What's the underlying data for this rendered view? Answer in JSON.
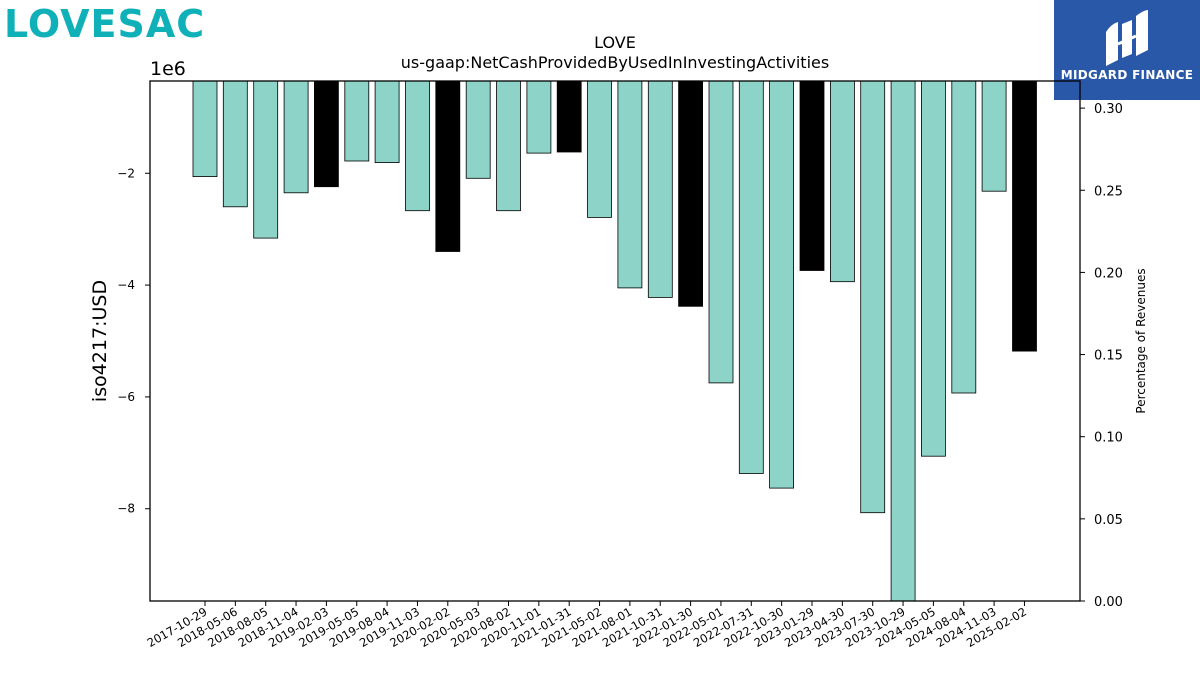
{
  "branding": {
    "company_logo_text": "LOVESAC",
    "company_logo_color": "#0fb0b8",
    "publisher_logo_text": "MIDGARD FINANCE",
    "publisher_logo_bg": "#2a58a8"
  },
  "chart_data": {
    "type": "bar",
    "title": "LOVE",
    "subtitle": "us-gaap:NetCashProvidedByUsedInInvestingActivities",
    "ylabel": "iso4217:USD",
    "y_offset_label": "1e6",
    "y2label": "Percentage of Revenues",
    "ylim": [
      -9.65,
      -0.35
    ],
    "y2lim": [
      0.0,
      0.3165
    ],
    "yticks": [
      -2,
      -4,
      -6,
      -8
    ],
    "ytick_labels": [
      "−2",
      "−4",
      "−6",
      "−8"
    ],
    "y2ticks": [
      0.0,
      0.05,
      0.1,
      0.15,
      0.2,
      0.25,
      0.3
    ],
    "y2tick_labels": [
      "0.00",
      "0.05",
      "0.10",
      "0.15",
      "0.20",
      "0.25",
      "0.30"
    ],
    "grid": false,
    "colors": {
      "quarter": "#8dd3c7",
      "annual": "#000000"
    },
    "categories": [
      "2017-10-29",
      "2018-05-06",
      "2018-08-05",
      "2018-11-04",
      "2019-02-03",
      "2019-05-05",
      "2019-08-04",
      "2019-11-03",
      "2020-02-02",
      "2020-05-03",
      "2020-08-02",
      "2020-11-01",
      "2021-01-31",
      "2021-05-02",
      "2021-08-01",
      "2021-10-31",
      "2022-01-30",
      "2022-05-01",
      "2022-07-31",
      "2022-10-30",
      "2023-01-29",
      "2023-04-30",
      "2023-07-30",
      "2023-10-29",
      "2024-05-05",
      "2024-08-04",
      "2024-11-03",
      "2025-02-02"
    ],
    "values": [
      -2.06,
      -2.6,
      -3.16,
      -2.35,
      -2.24,
      -1.78,
      -1.81,
      -2.67,
      -3.4,
      -2.09,
      -2.67,
      -1.64,
      -1.62,
      -2.79,
      -4.05,
      -4.22,
      -4.38,
      -5.75,
      -7.37,
      -7.63,
      -3.74,
      -3.94,
      -8.07,
      -9.65,
      -7.06,
      -5.93,
      -2.32,
      -5.18
    ],
    "annual": [
      false,
      false,
      false,
      false,
      true,
      false,
      false,
      false,
      true,
      false,
      false,
      false,
      true,
      false,
      false,
      false,
      true,
      false,
      false,
      false,
      true,
      false,
      false,
      false,
      false,
      false,
      false,
      true
    ]
  }
}
